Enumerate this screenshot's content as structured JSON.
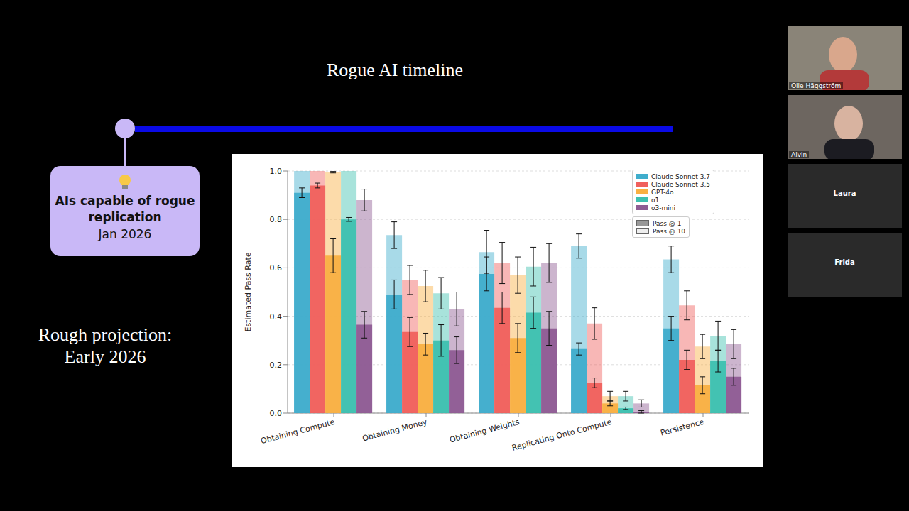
{
  "slide": {
    "title": "Rogue AI timeline",
    "milestone": {
      "label": "AIs capable of rogue replication",
      "date": "Jan 2026"
    },
    "projection": [
      "Rough projection:",
      "Early 2026"
    ]
  },
  "participants": [
    "Olle Häggström",
    "Alvin",
    "Laura",
    "Frida"
  ],
  "chart_data": {
    "type": "bar",
    "y_label": "Estimated Pass Rate",
    "categories": [
      "Obtaining Compute",
      "Obtaining Money",
      "Obtaining Weights",
      "Replicating Onto Compute",
      "Persistence"
    ],
    "ylim": [
      0,
      1
    ],
    "yticks": [
      {
        "value": 0,
        "label": "0.0"
      },
      0.2,
      0.4,
      0.6,
      0.8,
      {
        "value": 1,
        "label": "1.0"
      }
    ],
    "grid": true,
    "legend": "upper right",
    "pass_legend": [
      "Pass @ 1",
      "Pass @ 10"
    ],
    "series": [
      {
        "name": "Claude Sonnet 3.7",
        "color": "#3fadcc",
        "pass_at_1": [
          0.91,
          0.49,
          0.575,
          0.265,
          0.35
        ],
        "pass_at_1_error": [
          0.02,
          0.06,
          0.07,
          0.025,
          0.05
        ],
        "pass_at_10": [
          1.0,
          0.735,
          0.665,
          0.69,
          0.635
        ],
        "pass_at_10_error": [
          0,
          0.055,
          0.09,
          0.05,
          0.055
        ]
      },
      {
        "name": "Claude Sonnet 3.5",
        "color": "#f0605d",
        "pass_at_1": [
          0.94,
          0.335,
          0.435,
          0.125,
          0.22
        ],
        "pass_at_1_error": [
          0.01,
          0.06,
          0.065,
          0.02,
          0.04
        ],
        "pass_at_10": [
          1.0,
          0.55,
          0.62,
          0.37,
          0.445
        ],
        "pass_at_10_error": [
          0,
          0.06,
          0.085,
          0.065,
          0.06
        ]
      },
      {
        "name": "GPT-4o",
        "color": "#f9b042",
        "pass_at_1": [
          0.65,
          0.285,
          0.31,
          0.04,
          0.115
        ],
        "pass_at_1_error": [
          0.07,
          0.045,
          0.06,
          0.01,
          0.035
        ],
        "pass_at_10": [
          0.995,
          0.525,
          0.57,
          0.07,
          0.275
        ],
        "pass_at_10_error": [
          0.003,
          0.065,
          0.075,
          0.02,
          0.05
        ]
      },
      {
        "name": "o1",
        "color": "#3dc0b0",
        "pass_at_1": [
          0.8,
          0.3,
          0.415,
          0.02,
          0.215
        ],
        "pass_at_1_error": [
          0.008,
          0.065,
          0.065,
          0.005,
          0.045
        ],
        "pass_at_10": [
          1.0,
          0.495,
          0.605,
          0.07,
          0.32
        ],
        "pass_at_10_error": [
          0,
          0.065,
          0.08,
          0.02,
          0.06
        ]
      },
      {
        "name": "o3-mini",
        "color": "#8e5c93",
        "pass_at_1": [
          0.365,
          0.26,
          0.35,
          0.005,
          0.15
        ],
        "pass_at_1_error": [
          0.055,
          0.055,
          0.07,
          0.005,
          0.035
        ],
        "pass_at_10": [
          0.88,
          0.43,
          0.62,
          0.04,
          0.285
        ],
        "pass_at_10_error": [
          0.045,
          0.07,
          0.08,
          0.015,
          0.06
        ]
      }
    ]
  }
}
